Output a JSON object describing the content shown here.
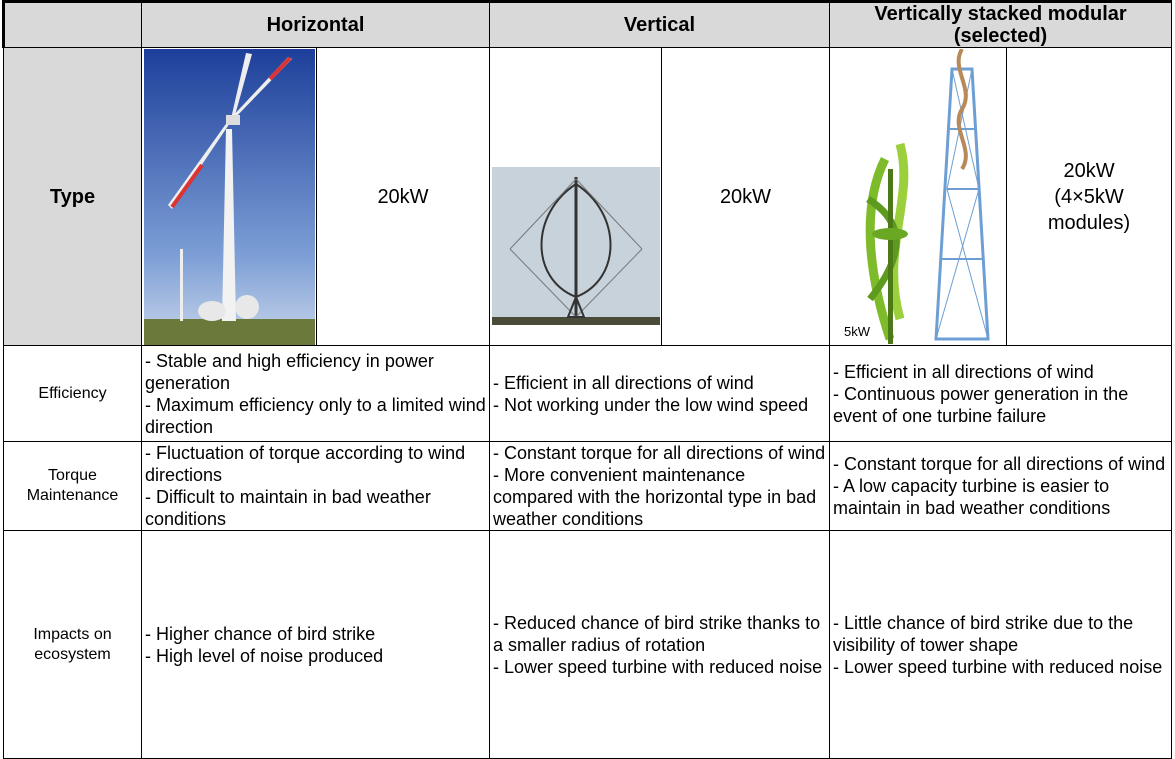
{
  "table": {
    "corner": "Type",
    "columns": [
      "Horizontal",
      "Vertical",
      "Vertically stacked modular (selected)"
    ],
    "capacities": [
      "20kW",
      "20kW",
      [
        "20kW",
        "(4×5kW",
        "modules)"
      ]
    ],
    "image_label": "5kW",
    "rows": [
      {
        "label": "Efficiency",
        "cells": [
          [
            "- Stable and high efficiency in power generation",
            "- Maximum efficiency only to a limited wind direction"
          ],
          [
            "- Efficient in all directions of wind",
            "- Not working under the low wind speed"
          ],
          [
            "- Efficient in all directions of wind",
            "- Continuous power generation in the event of one turbine failure"
          ]
        ]
      },
      {
        "label": "Torque Maintenance",
        "cells": [
          [
            "- Fluctuation of torque according to wind directions",
            "- Difficult to maintain in bad weather conditions"
          ],
          [
            "- Constant torque for all directions of wind",
            "- More convenient maintenance compared with the horizontal type in bad weather conditions"
          ],
          [
            "- Constant torque for all directions of wind",
            "- A low capacity turbine is easier to maintain in bad weather conditions"
          ]
        ]
      },
      {
        "label": "Impacts on ecosystem",
        "cells": [
          [
            "- Higher chance of bird strike",
            "- High level of noise produced"
          ],
          [
            "- Reduced chance of bird strike thanks to a smaller radius of rotation",
            "- Lower speed turbine with reduced noise"
          ],
          [
            "- Little chance of bird strike due to the visibility of tower shape",
            "- Lower speed turbine with reduced noise"
          ]
        ]
      }
    ]
  }
}
